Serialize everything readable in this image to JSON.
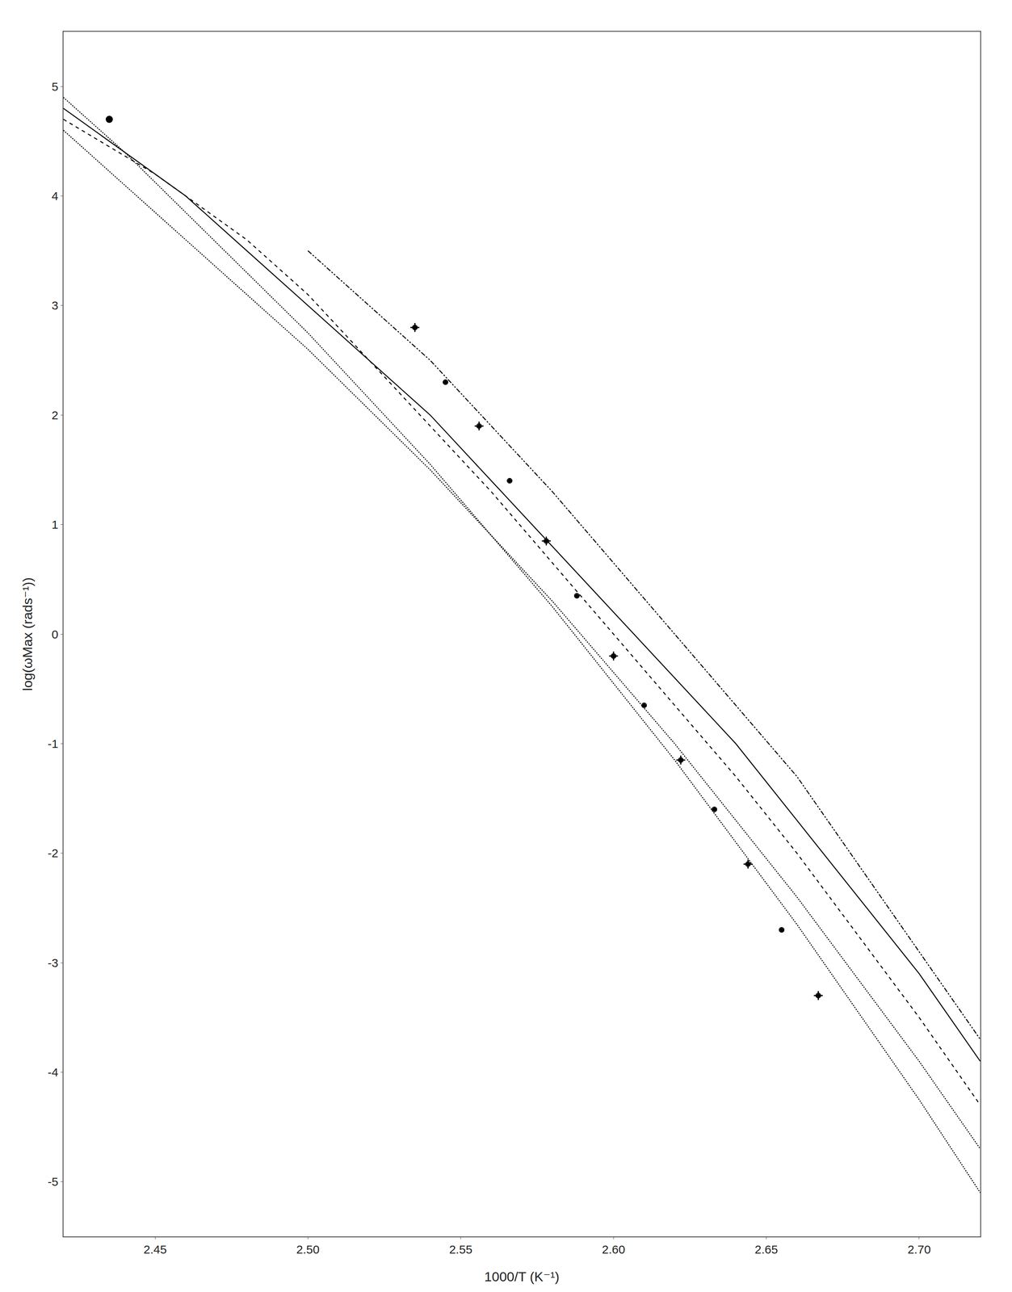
{
  "chart_data": {
    "type": "scatter",
    "xlabel": "1000/T (K⁻¹)",
    "ylabel": "log(ωMax (rads⁻¹))",
    "xlim": [
      2.42,
      2.72
    ],
    "ylim": [
      -5.5,
      5.5
    ],
    "xticks": [
      2.45,
      {
        "value": 2.5,
        "label": "2.50"
      },
      2.55,
      {
        "value": 2.6,
        "label": "2.60"
      },
      2.65,
      {
        "value": 2.7,
        "label": "2.70"
      }
    ],
    "yticks": [
      -5,
      -4,
      -3,
      -2,
      -1,
      0,
      1,
      2,
      3,
      4,
      5
    ],
    "grid": false,
    "color": "#000000",
    "series": [
      {
        "type": "line",
        "line_style": "dotted",
        "x": [
          2.42,
          2.44,
          2.46,
          2.48,
          2.5,
          2.52,
          2.54,
          2.56,
          2.58,
          2.6,
          2.62,
          2.64,
          2.66,
          2.68,
          2.7,
          2.72
        ],
        "values": [
          4.6,
          4.1,
          3.6,
          3.1,
          2.6,
          2.05,
          1.5,
          0.9,
          0.3,
          -0.35,
          -1.0,
          -1.7,
          -2.4,
          -3.15,
          -3.9,
          -4.7
        ]
      },
      {
        "type": "line",
        "line_style": "dotted",
        "x": [
          2.42,
          2.44,
          2.46,
          2.48,
          2.5,
          2.52,
          2.54,
          2.56,
          2.58,
          2.6,
          2.62,
          2.64,
          2.66,
          2.68,
          2.7,
          2.72
        ],
        "values": [
          4.9,
          4.4,
          3.85,
          3.3,
          2.75,
          2.15,
          1.55,
          0.9,
          0.25,
          -0.45,
          -1.15,
          -1.9,
          -2.65,
          -3.45,
          -4.25,
          -5.1
        ]
      },
      {
        "type": "line",
        "line_style": "solid",
        "x": [
          2.42,
          2.44,
          2.46,
          2.48,
          2.5,
          2.52,
          2.54,
          2.56,
          2.58,
          2.6,
          2.62,
          2.64,
          2.66,
          2.68,
          2.7,
          2.72
        ],
        "values": [
          4.8,
          4.4,
          4.0,
          3.5,
          3.0,
          2.5,
          2.0,
          1.4,
          0.8,
          0.2,
          -0.4,
          -1.0,
          -1.7,
          -2.4,
          -3.1,
          -3.9
        ]
      },
      {
        "type": "line",
        "line_style": "dashdotdot",
        "x": [
          2.5,
          2.52,
          2.54,
          2.56,
          2.58,
          2.6,
          2.62,
          2.64,
          2.66,
          2.68,
          2.7,
          2.72
        ],
        "values": [
          3.5,
          3.0,
          2.5,
          1.9,
          1.3,
          0.65,
          0.0,
          -0.65,
          -1.3,
          -2.1,
          -2.9,
          -3.7
        ]
      },
      {
        "type": "line",
        "line_style": "dashed",
        "x": [
          2.42,
          2.45,
          2.48,
          2.5,
          2.52,
          2.54,
          2.56,
          2.58,
          2.6,
          2.62,
          2.64,
          2.66,
          2.68,
          2.7,
          2.72
        ],
        "values": [
          4.7,
          4.2,
          3.6,
          3.1,
          2.5,
          1.9,
          1.3,
          0.65,
          0.0,
          -0.65,
          -1.3,
          -2.0,
          -2.75,
          -3.5,
          -4.3
        ]
      },
      {
        "type": "scatter",
        "marker": "open_circle",
        "x": [
          2.535,
          2.545,
          2.556,
          2.566,
          2.578,
          2.588,
          2.6,
          2.61,
          2.622,
          2.633,
          2.644,
          2.655,
          2.667
        ],
        "values": [
          2.8,
          2.3,
          1.9,
          1.4,
          0.85,
          0.35,
          -0.2,
          -0.65,
          -1.15,
          -1.6,
          -2.1,
          -2.7,
          -3.3
        ]
      },
      {
        "type": "scatter",
        "marker": "triangle",
        "x": [
          2.535,
          2.545,
          2.556,
          2.566,
          2.578,
          2.588,
          2.6,
          2.61,
          2.622,
          2.633,
          2.644,
          2.655,
          2.667
        ],
        "values": [
          2.8,
          2.3,
          1.9,
          1.4,
          0.85,
          0.35,
          -0.2,
          -0.65,
          -1.15,
          -1.6,
          -2.1,
          -2.7,
          -3.3
        ]
      },
      {
        "type": "scatter",
        "marker": "diamond",
        "x": [
          2.535,
          2.545,
          2.556,
          2.566,
          2.578,
          2.588,
          2.6,
          2.61,
          2.622,
          2.633,
          2.644,
          2.655,
          2.667
        ],
        "values": [
          2.8,
          2.3,
          1.9,
          1.4,
          0.85,
          0.35,
          -0.2,
          -0.65,
          -1.15,
          -1.6,
          -2.1,
          -2.7,
          -3.3
        ]
      },
      {
        "type": "scatter",
        "marker": "plus",
        "x": [
          2.535,
          2.556,
          2.578,
          2.6,
          2.622,
          2.644,
          2.667
        ],
        "values": [
          2.8,
          1.9,
          0.85,
          -0.2,
          -1.15,
          -2.1,
          -3.3
        ]
      },
      {
        "type": "scatter",
        "marker": "large_circle",
        "x": [
          2.435
        ],
        "values": [
          4.7
        ]
      }
    ]
  }
}
